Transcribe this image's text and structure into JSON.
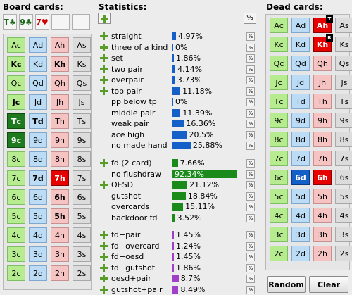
{
  "board": {
    "title": "Board cards:",
    "slots": [
      {
        "rank": "T",
        "suit": "♣"
      },
      {
        "rank": "9",
        "suit": "♣"
      },
      {
        "rank": "7",
        "suit": "♥"
      }
    ]
  },
  "statistics": {
    "title": "Statistics:",
    "pct_button": "%",
    "groups": [
      [
        {
          "label": "straight",
          "value": "4.97%",
          "pct": 4.97
        },
        {
          "label": "three of a kind",
          "value": "0%",
          "pct": 0
        },
        {
          "label": "set",
          "value": "1.86%",
          "pct": 1.86
        },
        {
          "label": "two pair",
          "value": "4.14%",
          "pct": 4.14
        },
        {
          "label": "overpair",
          "value": "3.73%",
          "pct": 3.73
        },
        {
          "label": "top pair",
          "value": "11.18%",
          "pct": 11.18
        },
        {
          "label": "pp below tp",
          "value": "0%",
          "pct": 0
        },
        {
          "label": "middle pair",
          "value": "11.39%",
          "pct": 11.39
        },
        {
          "label": "weak pair",
          "value": "16.36%",
          "pct": 16.36
        },
        {
          "label": "ace high",
          "value": "20.5%",
          "pct": 20.5
        },
        {
          "label": "no made hand",
          "value": "25.88%",
          "pct": 25.88
        }
      ],
      [
        {
          "label": "fd (2 card)",
          "value": "7.66%",
          "pct": 7.66
        },
        {
          "label": "no flushdraw",
          "value": "92.34%",
          "pct": 92.34
        },
        {
          "label": "OESD",
          "value": "21.12%",
          "pct": 21.12
        },
        {
          "label": "gutshot",
          "value": "18.84%",
          "pct": 18.84
        },
        {
          "label": "overcards",
          "value": "15.11%",
          "pct": 15.11
        },
        {
          "label": "backdoor fd",
          "value": "3.52%",
          "pct": 3.52
        }
      ],
      [
        {
          "label": "fd+pair",
          "value": "1.45%",
          "pct": 1.45
        },
        {
          "label": "fd+overcard",
          "value": "1.24%",
          "pct": 1.24
        },
        {
          "label": "fd+oesd",
          "value": "1.45%",
          "pct": 1.45
        },
        {
          "label": "fd+gutshot",
          "value": "1.86%",
          "pct": 1.86
        },
        {
          "label": "oesd+pair",
          "value": "8.7%",
          "pct": 8.7
        },
        {
          "label": "gutshot+pair",
          "value": "8.49%",
          "pct": 8.49
        }
      ]
    ]
  },
  "dead": {
    "title": "Dead cards:",
    "random_label": "Random",
    "clear_label": "Clear"
  },
  "ranks": [
    "A",
    "K",
    "Q",
    "J",
    "T",
    "9",
    "8",
    "7",
    "6",
    "5",
    "4",
    "3",
    "2"
  ],
  "board_grid": {
    "selected": {
      "Tc": "c",
      "9c": "c",
      "7h": "h"
    },
    "bold": [
      "Kc",
      "Kh",
      "Jc",
      "Td",
      "9c",
      "7d",
      "6h",
      "5h"
    ]
  },
  "dead_grid": {
    "selected": {
      "Ah": "h",
      "Kh": "h",
      "6d": "d",
      "6h": "h"
    },
    "corner": {
      "Ah": "T",
      "Kh": "R"
    }
  },
  "colors": {
    "club": "#b7eb8f",
    "diamond": "#bcdcf5",
    "heart": "#f6c3c3",
    "spade": "#dcdcdc",
    "bar_blue": "#1560c8",
    "bar_green": "#1a8a1a",
    "bar_purple": "#a040c8"
  }
}
